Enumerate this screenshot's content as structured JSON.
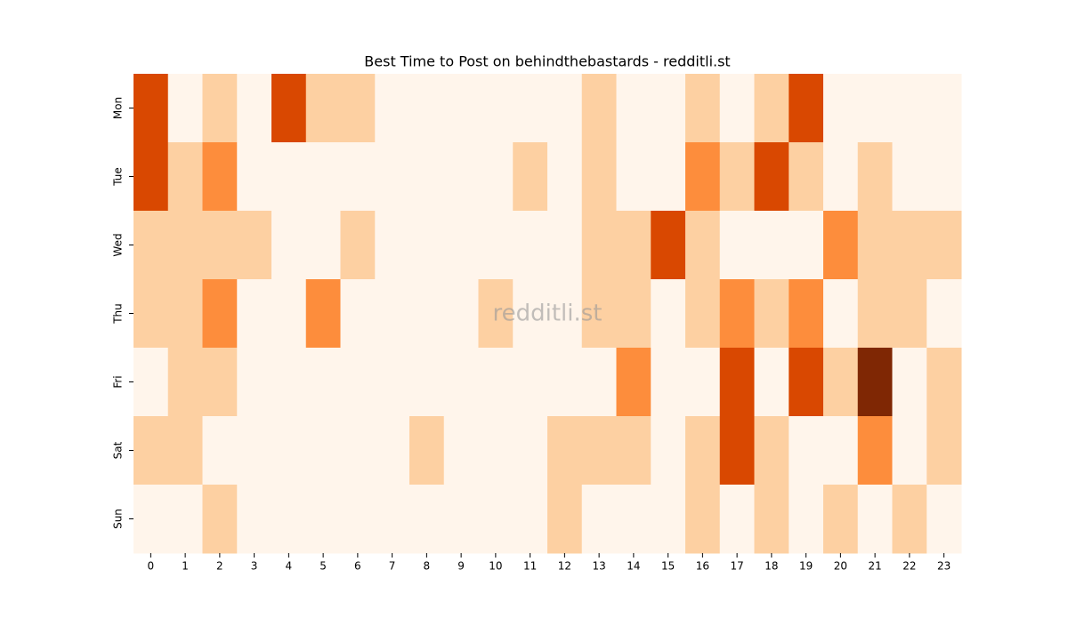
{
  "chart_data": {
    "type": "heatmap",
    "title": "Best Time to Post on behindthebastards - redditli.st",
    "watermark": "redditli.st",
    "x": [
      0,
      1,
      2,
      3,
      4,
      5,
      6,
      7,
      8,
      9,
      10,
      11,
      12,
      13,
      14,
      15,
      16,
      17,
      18,
      19,
      20,
      21,
      22,
      23
    ],
    "y": [
      "Mon",
      "Tue",
      "Wed",
      "Thu",
      "Fri",
      "Sat",
      "Sun"
    ],
    "values": [
      [
        3,
        0,
        1,
        0,
        3,
        1,
        1,
        0,
        0,
        0,
        0,
        0,
        0,
        1,
        0,
        0,
        1,
        0,
        1,
        3,
        0,
        0,
        0,
        0
      ],
      [
        3,
        1,
        2,
        0,
        0,
        0,
        0,
        0,
        0,
        0,
        0,
        1,
        0,
        1,
        0,
        0,
        2,
        1,
        3,
        1,
        0,
        1,
        0,
        0
      ],
      [
        1,
        1,
        1,
        1,
        0,
        0,
        1,
        0,
        0,
        0,
        0,
        0,
        0,
        1,
        1,
        3,
        1,
        0,
        0,
        0,
        2,
        1,
        1,
        1
      ],
      [
        1,
        1,
        2,
        0,
        0,
        2,
        0,
        0,
        0,
        0,
        1,
        0,
        0,
        1,
        1,
        0,
        1,
        2,
        1,
        2,
        0,
        1,
        1,
        0
      ],
      [
        0,
        1,
        1,
        0,
        0,
        0,
        0,
        0,
        0,
        0,
        0,
        0,
        0,
        0,
        2,
        0,
        0,
        3,
        0,
        3,
        1,
        4,
        0,
        1
      ],
      [
        1,
        1,
        0,
        0,
        0,
        0,
        0,
        0,
        1,
        0,
        0,
        0,
        1,
        1,
        1,
        0,
        1,
        3,
        1,
        0,
        0,
        2,
        0,
        1
      ],
      [
        0,
        0,
        1,
        0,
        0,
        0,
        0,
        0,
        0,
        0,
        0,
        0,
        1,
        0,
        0,
        0,
        1,
        0,
        1,
        0,
        1,
        0,
        1,
        0
      ]
    ],
    "vmin": 0,
    "vmax": 4,
    "colorscale": [
      "#fff5eb",
      "#fee6ce",
      "#fdd0a2",
      "#fdae6b",
      "#fd8d3c",
      "#f16913",
      "#d94801",
      "#a63603",
      "#7f2704"
    ]
  }
}
